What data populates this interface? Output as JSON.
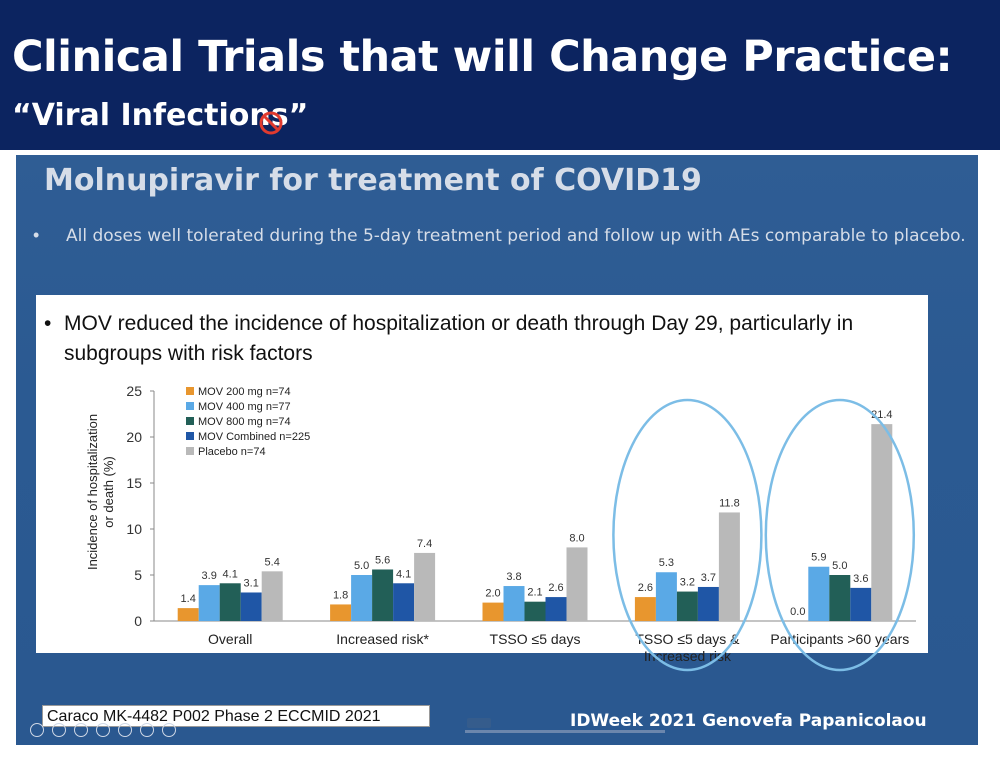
{
  "header": {
    "title": "Clinical Trials that will Change Practice:",
    "subtitle": "“Viral Infections”"
  },
  "slide": {
    "title": "Molnupiravir for treatment of COVID19",
    "bullet": "All doses well tolerated during the 5-day treatment period and follow up with AEs comparable to placebo.",
    "chart_bullet": "MOV reduced the incidence of hospitalization or death through Day 29, particularly in subgroups with risk factors",
    "citation": "Caraco MK-4482 P002 Phase 2 ECCMID 2021",
    "credit": "IDWeek 2021 Genovefa Papanicolaou"
  },
  "colors": {
    "header_bg": "#0c2460",
    "slide_bg": "#2d5b93",
    "circle": "#7cbde6"
  },
  "chart_data": {
    "type": "bar",
    "ylabel": "Incidence of hospitalization or death (%)",
    "ylim": [
      0,
      25
    ],
    "yticks": [
      0,
      5,
      10,
      15,
      20,
      25
    ],
    "categories": [
      "Overall",
      "Increased risk*",
      "TSSO ≤5 days",
      "TSSO ≤5 days & Increased risk",
      "Participants >60 years"
    ],
    "series": [
      {
        "name": "MOV 200 mg n=74",
        "color": "#e8962e",
        "values": [
          1.4,
          1.8,
          2.0,
          2.6,
          0.0
        ],
        "labels": [
          "1.4",
          "1.8",
          "2.0",
          "2.6",
          "0.0"
        ]
      },
      {
        "name": "MOV 400 mg n=77",
        "color": "#5aa9e6",
        "values": [
          3.9,
          5.0,
          3.8,
          5.3,
          5.9
        ],
        "labels": [
          "3.9",
          "5.0",
          "3.8",
          "5.3",
          "5.9"
        ]
      },
      {
        "name": "MOV 800 mg n=74",
        "color": "#225f57",
        "values": [
          4.1,
          5.6,
          2.1,
          3.2,
          5.0
        ],
        "labels": [
          "4.1",
          "5.6",
          "2.1",
          "3.2",
          "5.0"
        ]
      },
      {
        "name": "MOV Combined n=225",
        "color": "#1f56a6",
        "values": [
          3.1,
          4.1,
          2.6,
          3.7,
          3.6
        ],
        "labels": [
          "3.1",
          "4.1",
          "2.6",
          "3.7",
          "3.6"
        ]
      },
      {
        "name": "Placebo n=74",
        "color": "#b9b9b9",
        "values": [
          5.4,
          7.4,
          8.0,
          11.8,
          21.4
        ],
        "labels": [
          "5.4",
          "7.4",
          "8.0",
          "11.8",
          "21.4"
        ]
      }
    ],
    "legend_position": "top-left",
    "highlighted_categories": [
      "TSSO ≤5 days & Increased risk",
      "Participants >60 years"
    ]
  }
}
